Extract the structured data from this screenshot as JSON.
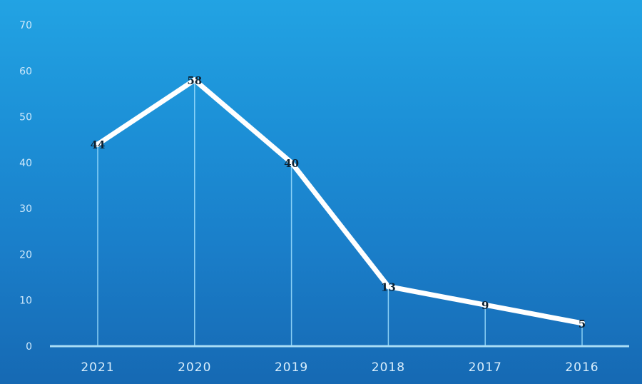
{
  "chart_data": {
    "type": "line",
    "categories": [
      "2021",
      "2020",
      "2019",
      "2018",
      "2017",
      "2016"
    ],
    "values": [
      44,
      58,
      40,
      13,
      9,
      5
    ],
    "data_labels": [
      "44",
      "58",
      "40",
      "13",
      "9",
      "5"
    ],
    "title": "",
    "xlabel": "",
    "ylabel": "",
    "ylim": [
      0,
      70
    ],
    "yticks": [
      "0",
      "10",
      "20",
      "30",
      "40",
      "50",
      "60",
      "70"
    ],
    "grid": false,
    "drop_lines": true,
    "legend": "none",
    "colors": {
      "line": "#ffffff",
      "drop_line": "#9fe0ff",
      "axis": "#a8dcf5",
      "background_top": "#22a3e3",
      "background_bottom": "#1669b3"
    }
  }
}
